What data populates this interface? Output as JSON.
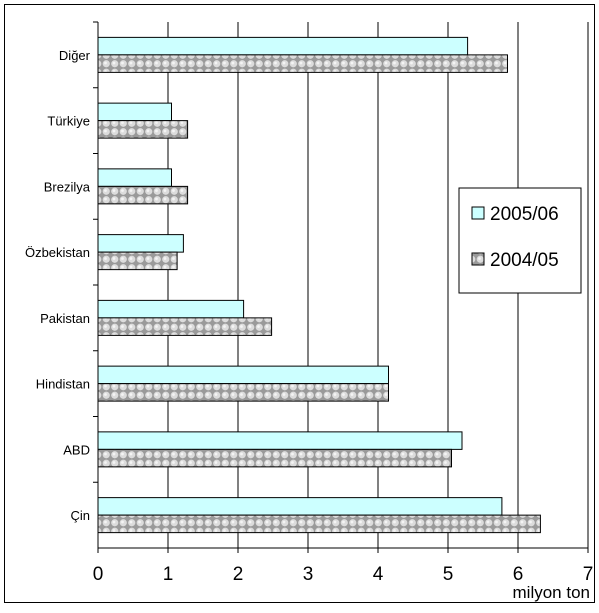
{
  "chart_data": {
    "type": "bar",
    "orientation": "horizontal",
    "categories": [
      "Diğer",
      "Türkiye",
      "Brezilya",
      "Özbekistan",
      "Pakistan",
      "Hindistan",
      "ABD",
      "Çin"
    ],
    "series": [
      {
        "name": "2005/06",
        "values": [
          5.28,
          1.05,
          1.05,
          1.22,
          2.08,
          4.15,
          5.2,
          5.77
        ],
        "color": "#ccffff"
      },
      {
        "name": "2004/05",
        "values": [
          5.85,
          1.28,
          1.28,
          1.13,
          2.48,
          4.15,
          5.05,
          6.32
        ],
        "color": "#b0b0b0",
        "pattern": "dotted-spheres"
      }
    ],
    "xlim": [
      0,
      7
    ],
    "xticks": [
      "0",
      "1",
      "2",
      "3",
      "4",
      "5",
      "6",
      "7"
    ],
    "xlabel": "milyon ton",
    "title": "",
    "grid": "vertical",
    "legend_position": "right"
  }
}
